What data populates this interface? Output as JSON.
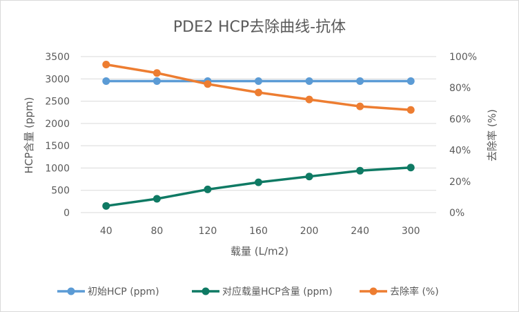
{
  "chart_data": {
    "type": "line",
    "title": "PDE2  HCP去除曲线-抗体",
    "xlabel": "载量 (L/m2)",
    "ylabel": "HCP含量 (ppm)",
    "y2label": "去除率 (%)",
    "categories": [
      "40",
      "80",
      "120",
      "160",
      "200",
      "240",
      "300"
    ],
    "ylim": [
      0,
      3500
    ],
    "yticks": [
      "0",
      "500",
      "1000",
      "1500",
      "2000",
      "2500",
      "3000",
      "3500"
    ],
    "y2lim": [
      0,
      100
    ],
    "y2ticks": [
      "0%",
      "20%",
      "40%",
      "60%",
      "80%",
      "100%"
    ],
    "grid": true,
    "legend_position": "bottom",
    "series": [
      {
        "name": "初始HCP (ppm)",
        "axis": "left",
        "color": "#5b9bd5",
        "values": [
          2950,
          2950,
          2950,
          2950,
          2950,
          2950,
          2950
        ]
      },
      {
        "name": "对应载量HCP含量 (ppm)",
        "axis": "left",
        "color": "#0f7a64",
        "values": [
          150,
          310,
          520,
          680,
          810,
          940,
          1010
        ]
      },
      {
        "name": "去除率 (%)",
        "axis": "right",
        "color": "#ed7d31",
        "values": [
          94.9,
          89.5,
          82.4,
          77.0,
          72.5,
          68.1,
          65.8
        ]
      }
    ]
  }
}
